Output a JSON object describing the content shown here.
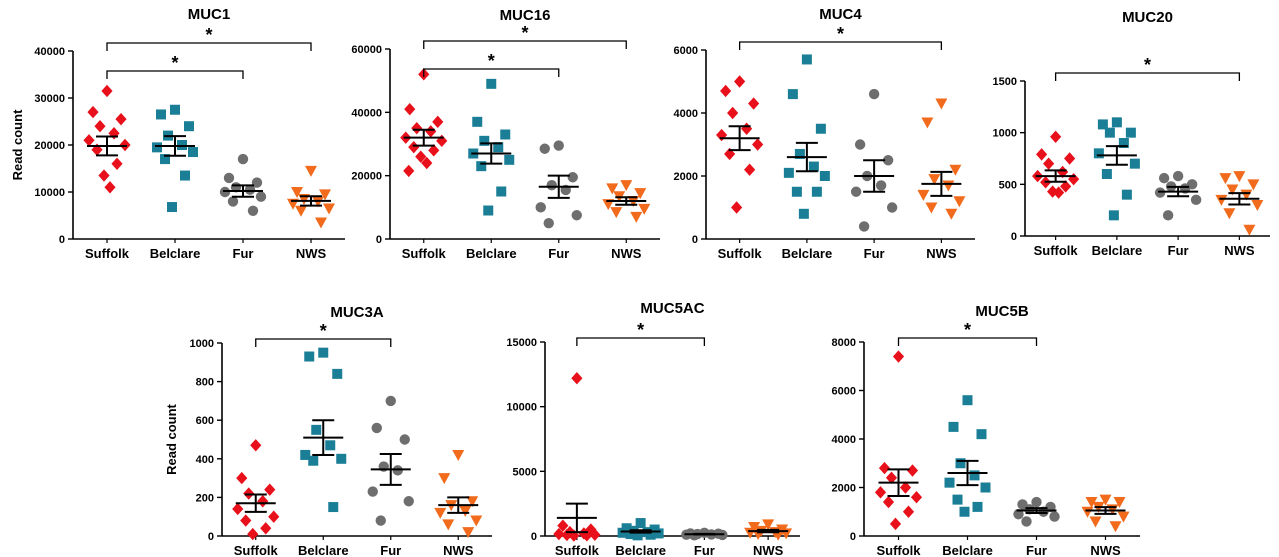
{
  "chart_data": [
    {
      "type": "scatter",
      "title": "MUC1",
      "ylabel": "Read count",
      "ylim": [
        0,
        40000
      ],
      "yticks": [
        0,
        10000,
        20000,
        30000,
        40000
      ],
      "categories": [
        "Suffolk",
        "Belclare",
        "Fur",
        "NWS"
      ],
      "series": [
        {
          "values": [
            31500,
            27000,
            25500,
            24000,
            22500,
            21000,
            20000,
            19000,
            16000,
            13500,
            11000
          ],
          "mean": 19800,
          "sem": 2000
        },
        {
          "values": [
            27500,
            26500,
            24000,
            22000,
            20000,
            19500,
            18500,
            17000,
            13500,
            6800
          ],
          "mean": 19800,
          "sem": 2100
        },
        {
          "values": [
            17000,
            13000,
            12000,
            11000,
            10500,
            10000,
            9000,
            8000,
            6000
          ],
          "mean": 10200,
          "sem": 1200
        },
        {
          "values": [
            14500,
            10000,
            9500,
            8500,
            8000,
            7500,
            6500,
            6000,
            3500
          ],
          "mean": 8100,
          "sem": 1000
        }
      ],
      "significance": [
        {
          "label": "*",
          "from": "Suffolk",
          "to": "Fur"
        },
        {
          "label": "*",
          "from": "Suffolk",
          "to": "NWS"
        }
      ]
    },
    {
      "type": "scatter",
      "title": "MUC16",
      "ylabel": "",
      "ylim": [
        0,
        60000
      ],
      "yticks": [
        0,
        20000,
        40000,
        60000
      ],
      "categories": [
        "Suffolk",
        "Belclare",
        "Fur",
        "NWS"
      ],
      "series": [
        {
          "values": [
            52000,
            41000,
            37000,
            35000,
            34000,
            32000,
            31000,
            29000,
            28000,
            26000,
            24000,
            21500
          ],
          "mean": 32000,
          "sem": 2500
        },
        {
          "values": [
            49000,
            37000,
            33000,
            31000,
            29000,
            27000,
            25000,
            23000,
            15000,
            9000
          ],
          "mean": 27000,
          "sem": 3200
        },
        {
          "values": [
            29500,
            28500,
            19500,
            17000,
            15500,
            10000,
            7500,
            5000
          ],
          "mean": 16500,
          "sem": 3500
        },
        {
          "values": [
            17000,
            16000,
            14500,
            13500,
            12000,
            11000,
            9500,
            8500,
            7000
          ],
          "mean": 12000,
          "sem": 1200
        }
      ],
      "significance": [
        {
          "label": "*",
          "from": "Suffolk",
          "to": "Fur"
        },
        {
          "label": "*",
          "from": "Suffolk",
          "to": "NWS"
        }
      ]
    },
    {
      "type": "scatter",
      "title": "MUC4",
      "ylabel": "",
      "ylim": [
        0,
        6000
      ],
      "yticks": [
        0,
        2000,
        4000,
        6000
      ],
      "categories": [
        "Suffolk",
        "Belclare",
        "Fur",
        "NWS"
      ],
      "series": [
        {
          "values": [
            5000,
            4700,
            4300,
            4000,
            3500,
            3300,
            3000,
            2700,
            2200,
            1000
          ],
          "mean": 3200,
          "sem": 380
        },
        {
          "values": [
            5700,
            4600,
            3500,
            2700,
            2300,
            2100,
            2000,
            1500,
            1500,
            800
          ],
          "mean": 2600,
          "sem": 450
        },
        {
          "values": [
            4600,
            3000,
            2500,
            2000,
            1700,
            1500,
            1000,
            400
          ],
          "mean": 2000,
          "sem": 500
        },
        {
          "values": [
            4300,
            3700,
            2200,
            1900,
            1700,
            1400,
            1200,
            1000,
            800
          ],
          "mean": 1750,
          "sem": 380
        }
      ],
      "significance": [
        {
          "label": "*",
          "from": "Suffolk",
          "to": "NWS"
        }
      ]
    },
    {
      "type": "scatter",
      "title": "MUC20",
      "ylabel": "",
      "ylim": [
        0,
        1500
      ],
      "yticks": [
        0,
        500,
        1000,
        1500
      ],
      "categories": [
        "Suffolk",
        "Belclare",
        "Fur",
        "NWS"
      ],
      "series": [
        {
          "values": [
            960,
            790,
            750,
            700,
            620,
            580,
            550,
            520,
            480,
            430,
            420
          ],
          "mean": 580,
          "sem": 55
        },
        {
          "values": [
            1100,
            1080,
            1000,
            1000,
            900,
            800,
            700,
            600,
            400,
            200
          ],
          "mean": 780,
          "sem": 90
        },
        {
          "values": [
            580,
            560,
            500,
            480,
            460,
            420,
            350,
            200
          ],
          "mean": 430,
          "sem": 45
        },
        {
          "values": [
            580,
            560,
            500,
            450,
            400,
            350,
            300,
            220,
            60
          ],
          "mean": 360,
          "sem": 55
        }
      ],
      "significance": [
        {
          "label": "*",
          "from": "Suffolk",
          "to": "NWS"
        }
      ]
    },
    {
      "type": "scatter",
      "title": "MUC3A",
      "ylabel": "Read count",
      "ylim": [
        0,
        1000
      ],
      "yticks": [
        0,
        200,
        400,
        600,
        800,
        1000
      ],
      "categories": [
        "Suffolk",
        "Belclare",
        "Fur",
        "NWS"
      ],
      "series": [
        {
          "values": [
            470,
            300,
            240,
            220,
            180,
            140,
            100,
            80,
            40,
            10
          ],
          "mean": 170,
          "sem": 45
        },
        {
          "values": [
            950,
            930,
            840,
            550,
            470,
            420,
            400,
            390,
            150
          ],
          "mean": 510,
          "sem": 90
        },
        {
          "values": [
            700,
            560,
            500,
            360,
            340,
            230,
            180,
            80
          ],
          "mean": 345,
          "sem": 80
        },
        {
          "values": [
            420,
            300,
            180,
            160,
            130,
            120,
            80,
            60,
            20
          ],
          "mean": 160,
          "sem": 40
        }
      ],
      "significance": [
        {
          "label": "*",
          "from": "Suffolk",
          "to": "Fur"
        }
      ]
    },
    {
      "type": "scatter",
      "title": "MUC5AC",
      "ylabel": "",
      "ylim": [
        0,
        15000
      ],
      "yticks": [
        0,
        5000,
        10000,
        15000
      ],
      "categories": [
        "Suffolk",
        "Belclare",
        "Fur",
        "NWS"
      ],
      "series": [
        {
          "values": [
            12200,
            800,
            500,
            300,
            200,
            150,
            100,
            80,
            50,
            30
          ],
          "mean": 1400,
          "sem": 1100
        },
        {
          "values": [
            1000,
            600,
            500,
            400,
            300,
            250,
            200,
            150,
            100,
            50
          ],
          "mean": 350,
          "sem": 90
        },
        {
          "values": [
            250,
            200,
            180,
            150,
            120,
            100,
            80,
            50
          ],
          "mean": 140,
          "sem": 25
        },
        {
          "values": [
            900,
            700,
            500,
            400,
            300,
            250,
            200,
            150,
            100
          ],
          "mean": 380,
          "sem": 90
        }
      ],
      "significance": [
        {
          "label": "*",
          "from": "Suffolk",
          "to": "Fur"
        }
      ]
    },
    {
      "type": "scatter",
      "title": "MUC5B",
      "ylabel": "",
      "ylim": [
        0,
        8000
      ],
      "yticks": [
        0,
        2000,
        4000,
        6000,
        8000
      ],
      "categories": [
        "Suffolk",
        "Belclare",
        "Fur",
        "NWS"
      ],
      "series": [
        {
          "values": [
            7400,
            2800,
            2700,
            2400,
            2000,
            1800,
            1600,
            1400,
            1000,
            500
          ],
          "mean": 2200,
          "sem": 550
        },
        {
          "values": [
            5600,
            4500,
            4200,
            3000,
            2500,
            2200,
            2000,
            1500,
            1200,
            1000
          ],
          "mean": 2600,
          "sem": 500
        },
        {
          "values": [
            1400,
            1300,
            1200,
            1100,
            1000,
            900,
            800,
            600
          ],
          "mean": 1050,
          "sem": 100
        },
        {
          "values": [
            1500,
            1400,
            1400,
            1200,
            1100,
            1000,
            800,
            600,
            400
          ],
          "mean": 1050,
          "sem": 140
        }
      ],
      "significance": [
        {
          "label": "*",
          "from": "Suffolk",
          "to": "Fur"
        }
      ]
    }
  ],
  "style": {
    "group_colors": [
      "#e8101a",
      "#1a7f96",
      "#6e6e6e",
      "#f26a1b"
    ],
    "group_markers": [
      "diamond",
      "square",
      "circle",
      "triangle-down"
    ]
  }
}
